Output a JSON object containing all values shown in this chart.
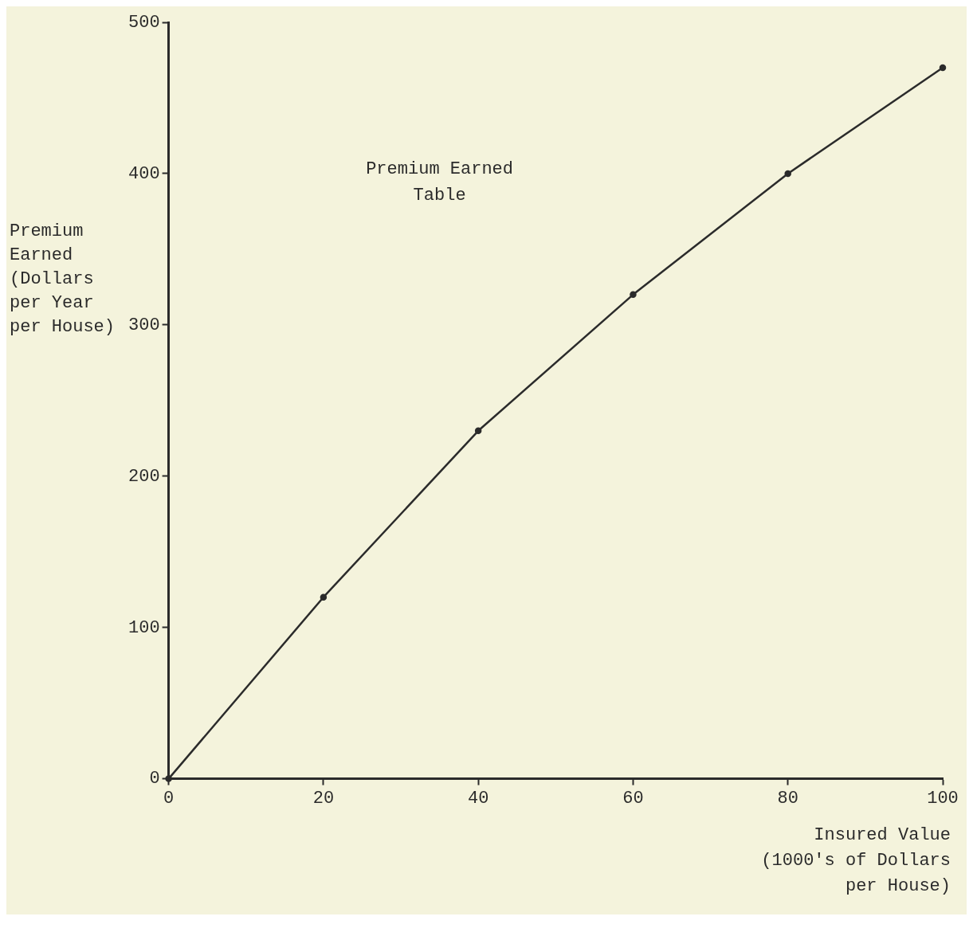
{
  "chart_data": {
    "type": "line",
    "title": "Premium Earned Table",
    "xlabel": "Insured Value (1000's of Dollars per House)",
    "ylabel": "Premium Earned (Dollars per Year per House)",
    "x": [
      0,
      20,
      40,
      60,
      80,
      100
    ],
    "series": [
      {
        "color": "#2b2b2b",
        "values": [
          0,
          120,
          230,
          320,
          400,
          470
        ]
      }
    ],
    "xlim": [
      0,
      100
    ],
    "xticks": [
      0,
      20,
      40,
      60,
      80,
      100
    ],
    "ylim": [
      0,
      500
    ],
    "yticks": [
      0,
      100,
      200,
      300,
      400,
      500
    ],
    "grid": false,
    "legend": false,
    "marker": "circle",
    "line_style": "solid"
  }
}
